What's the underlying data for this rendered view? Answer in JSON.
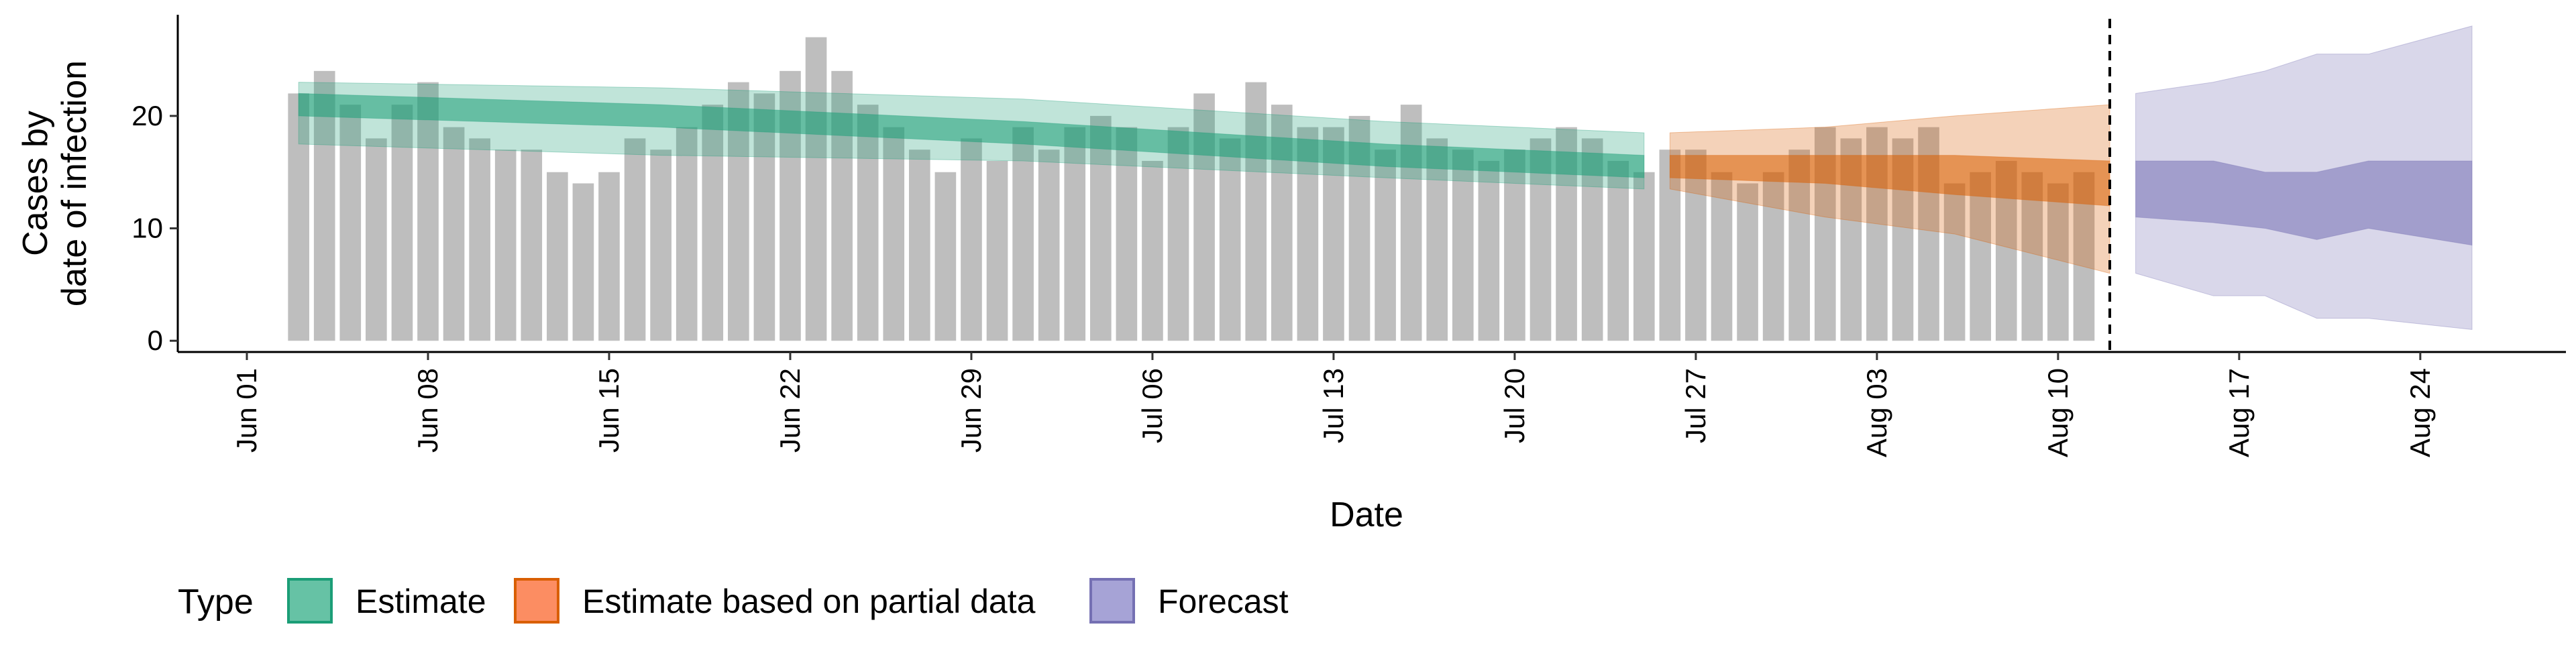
{
  "chart_data": {
    "type": "bar",
    "xlabel": "Date",
    "ylabel_lines": [
      "Cases by",
      "date of infection"
    ],
    "yticks": [
      0,
      10,
      20
    ],
    "ylim": [
      -1,
      29
    ],
    "x_start": "2020-06-01",
    "x_end": "2020-08-31",
    "xticks": [
      {
        "date": "2020-06-01",
        "label": "Jun 01"
      },
      {
        "date": "2020-06-08",
        "label": "Jun 08"
      },
      {
        "date": "2020-06-15",
        "label": "Jun 15"
      },
      {
        "date": "2020-06-22",
        "label": "Jun 22"
      },
      {
        "date": "2020-06-29",
        "label": "Jun 29"
      },
      {
        "date": "2020-07-06",
        "label": "Jul 06"
      },
      {
        "date": "2020-07-13",
        "label": "Jul 13"
      },
      {
        "date": "2020-07-20",
        "label": "Jul 20"
      },
      {
        "date": "2020-07-27",
        "label": "Jul 27"
      },
      {
        "date": "2020-08-03",
        "label": "Aug 03"
      },
      {
        "date": "2020-08-10",
        "label": "Aug 10"
      },
      {
        "date": "2020-08-17",
        "label": "Aug 17"
      },
      {
        "date": "2020-08-24",
        "label": "Aug 24"
      }
    ],
    "bars": {
      "start_date": "2020-06-03",
      "values": [
        22,
        24,
        21,
        18,
        21,
        23,
        19,
        18,
        17,
        17,
        15,
        14,
        15,
        18,
        17,
        19,
        21,
        23,
        22,
        24,
        27,
        24,
        21,
        19,
        17,
        15,
        18,
        16,
        19,
        17,
        19,
        20,
        19,
        16,
        19,
        22,
        18,
        23,
        21,
        19,
        19,
        20,
        17,
        21,
        18,
        17,
        16,
        17,
        18,
        19,
        18,
        16,
        15,
        17,
        17,
        15,
        14,
        15,
        17,
        19,
        18,
        19,
        18,
        19,
        14,
        15,
        16,
        15,
        14,
        15
      ],
      "color": "#bebebe"
    },
    "forecast_line_date": "2020-08-12",
    "series": [
      {
        "name": "Estimate",
        "color": "#1b9e77",
        "dates": [
          "2020-06-03",
          "2020-06-17",
          "2020-07-01",
          "2020-07-15",
          "2020-07-25"
        ],
        "outer_lower": [
          17.5,
          16.5,
          16.0,
          14.5,
          13.5
        ],
        "outer_upper": [
          23.0,
          22.5,
          21.5,
          19.5,
          18.5
        ],
        "inner_lower": [
          20.0,
          19.0,
          17.5,
          15.5,
          14.5
        ],
        "inner_upper": [
          22.0,
          21.0,
          19.5,
          17.5,
          16.5
        ]
      },
      {
        "name": "Estimate based on partial data",
        "color": "#d95f02",
        "dates": [
          "2020-07-26",
          "2020-08-01",
          "2020-08-06",
          "2020-08-12"
        ],
        "outer_lower": [
          13.5,
          11.0,
          9.5,
          6.0
        ],
        "outer_upper": [
          18.5,
          19.0,
          20.0,
          21.0
        ],
        "inner_lower": [
          14.5,
          14.0,
          13.0,
          12.0
        ],
        "inner_upper": [
          16.5,
          16.5,
          16.5,
          16.0
        ]
      },
      {
        "name": "Forecast",
        "color": "#7570b3",
        "dates": [
          "2020-08-13",
          "2020-08-16",
          "2020-08-18",
          "2020-08-20",
          "2020-08-22",
          "2020-08-26"
        ],
        "outer_lower": [
          6.0,
          4.0,
          4.0,
          2.0,
          2.0,
          1.0
        ],
        "outer_upper": [
          22.0,
          23.0,
          24.0,
          25.5,
          25.5,
          28.0
        ],
        "inner_lower": [
          11.0,
          10.5,
          10.0,
          9.0,
          10.0,
          8.5
        ],
        "inner_upper": [
          16.0,
          16.0,
          15.0,
          15.0,
          16.0,
          16.0
        ]
      }
    ],
    "legend": {
      "title": "Type",
      "position": "bottom",
      "items": [
        {
          "label": "Estimate",
          "fill": "#66c2a5",
          "stroke": "#1b9e77"
        },
        {
          "label": "Estimate based on partial data",
          "fill": "#fc8d62",
          "stroke": "#d95f02"
        },
        {
          "label": "Forecast",
          "fill": "#a6a3d6",
          "stroke": "#7570b3"
        }
      ]
    },
    "grid": false
  }
}
